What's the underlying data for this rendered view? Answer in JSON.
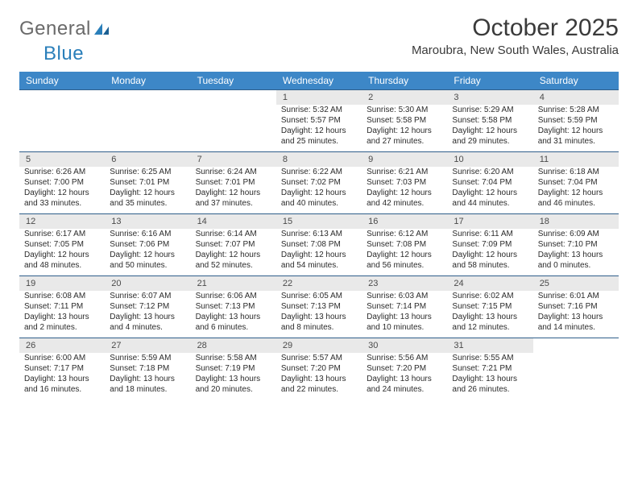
{
  "brand": {
    "text1": "General",
    "text2": "Blue"
  },
  "title": "October 2025",
  "location": "Maroubra, New South Wales, Australia",
  "colors": {
    "header_bg": "#3d87c7",
    "header_text": "#ffffff",
    "daynum_bg": "#e9e9e9",
    "rule": "#2f5e8a",
    "logo_gray": "#6a6a6a",
    "logo_blue": "#2a7fba"
  },
  "dow": [
    "Sunday",
    "Monday",
    "Tuesday",
    "Wednesday",
    "Thursday",
    "Friday",
    "Saturday"
  ],
  "weeks": [
    {
      "nums": [
        "",
        "",
        "",
        "1",
        "2",
        "3",
        "4"
      ],
      "cells": [
        null,
        null,
        null,
        {
          "sunrise": "Sunrise: 5:32 AM",
          "sunset": "Sunset: 5:57 PM",
          "day1": "Daylight: 12 hours",
          "day2": "and 25 minutes."
        },
        {
          "sunrise": "Sunrise: 5:30 AM",
          "sunset": "Sunset: 5:58 PM",
          "day1": "Daylight: 12 hours",
          "day2": "and 27 minutes."
        },
        {
          "sunrise": "Sunrise: 5:29 AM",
          "sunset": "Sunset: 5:58 PM",
          "day1": "Daylight: 12 hours",
          "day2": "and 29 minutes."
        },
        {
          "sunrise": "Sunrise: 5:28 AM",
          "sunset": "Sunset: 5:59 PM",
          "day1": "Daylight: 12 hours",
          "day2": "and 31 minutes."
        }
      ]
    },
    {
      "nums": [
        "5",
        "6",
        "7",
        "8",
        "9",
        "10",
        "11"
      ],
      "cells": [
        {
          "sunrise": "Sunrise: 6:26 AM",
          "sunset": "Sunset: 7:00 PM",
          "day1": "Daylight: 12 hours",
          "day2": "and 33 minutes."
        },
        {
          "sunrise": "Sunrise: 6:25 AM",
          "sunset": "Sunset: 7:01 PM",
          "day1": "Daylight: 12 hours",
          "day2": "and 35 minutes."
        },
        {
          "sunrise": "Sunrise: 6:24 AM",
          "sunset": "Sunset: 7:01 PM",
          "day1": "Daylight: 12 hours",
          "day2": "and 37 minutes."
        },
        {
          "sunrise": "Sunrise: 6:22 AM",
          "sunset": "Sunset: 7:02 PM",
          "day1": "Daylight: 12 hours",
          "day2": "and 40 minutes."
        },
        {
          "sunrise": "Sunrise: 6:21 AM",
          "sunset": "Sunset: 7:03 PM",
          "day1": "Daylight: 12 hours",
          "day2": "and 42 minutes."
        },
        {
          "sunrise": "Sunrise: 6:20 AM",
          "sunset": "Sunset: 7:04 PM",
          "day1": "Daylight: 12 hours",
          "day2": "and 44 minutes."
        },
        {
          "sunrise": "Sunrise: 6:18 AM",
          "sunset": "Sunset: 7:04 PM",
          "day1": "Daylight: 12 hours",
          "day2": "and 46 minutes."
        }
      ]
    },
    {
      "nums": [
        "12",
        "13",
        "14",
        "15",
        "16",
        "17",
        "18"
      ],
      "cells": [
        {
          "sunrise": "Sunrise: 6:17 AM",
          "sunset": "Sunset: 7:05 PM",
          "day1": "Daylight: 12 hours",
          "day2": "and 48 minutes."
        },
        {
          "sunrise": "Sunrise: 6:16 AM",
          "sunset": "Sunset: 7:06 PM",
          "day1": "Daylight: 12 hours",
          "day2": "and 50 minutes."
        },
        {
          "sunrise": "Sunrise: 6:14 AM",
          "sunset": "Sunset: 7:07 PM",
          "day1": "Daylight: 12 hours",
          "day2": "and 52 minutes."
        },
        {
          "sunrise": "Sunrise: 6:13 AM",
          "sunset": "Sunset: 7:08 PM",
          "day1": "Daylight: 12 hours",
          "day2": "and 54 minutes."
        },
        {
          "sunrise": "Sunrise: 6:12 AM",
          "sunset": "Sunset: 7:08 PM",
          "day1": "Daylight: 12 hours",
          "day2": "and 56 minutes."
        },
        {
          "sunrise": "Sunrise: 6:11 AM",
          "sunset": "Sunset: 7:09 PM",
          "day1": "Daylight: 12 hours",
          "day2": "and 58 minutes."
        },
        {
          "sunrise": "Sunrise: 6:09 AM",
          "sunset": "Sunset: 7:10 PM",
          "day1": "Daylight: 13 hours",
          "day2": "and 0 minutes."
        }
      ]
    },
    {
      "nums": [
        "19",
        "20",
        "21",
        "22",
        "23",
        "24",
        "25"
      ],
      "cells": [
        {
          "sunrise": "Sunrise: 6:08 AM",
          "sunset": "Sunset: 7:11 PM",
          "day1": "Daylight: 13 hours",
          "day2": "and 2 minutes."
        },
        {
          "sunrise": "Sunrise: 6:07 AM",
          "sunset": "Sunset: 7:12 PM",
          "day1": "Daylight: 13 hours",
          "day2": "and 4 minutes."
        },
        {
          "sunrise": "Sunrise: 6:06 AM",
          "sunset": "Sunset: 7:13 PM",
          "day1": "Daylight: 13 hours",
          "day2": "and 6 minutes."
        },
        {
          "sunrise": "Sunrise: 6:05 AM",
          "sunset": "Sunset: 7:13 PM",
          "day1": "Daylight: 13 hours",
          "day2": "and 8 minutes."
        },
        {
          "sunrise": "Sunrise: 6:03 AM",
          "sunset": "Sunset: 7:14 PM",
          "day1": "Daylight: 13 hours",
          "day2": "and 10 minutes."
        },
        {
          "sunrise": "Sunrise: 6:02 AM",
          "sunset": "Sunset: 7:15 PM",
          "day1": "Daylight: 13 hours",
          "day2": "and 12 minutes."
        },
        {
          "sunrise": "Sunrise: 6:01 AM",
          "sunset": "Sunset: 7:16 PM",
          "day1": "Daylight: 13 hours",
          "day2": "and 14 minutes."
        }
      ]
    },
    {
      "nums": [
        "26",
        "27",
        "28",
        "29",
        "30",
        "31",
        ""
      ],
      "cells": [
        {
          "sunrise": "Sunrise: 6:00 AM",
          "sunset": "Sunset: 7:17 PM",
          "day1": "Daylight: 13 hours",
          "day2": "and 16 minutes."
        },
        {
          "sunrise": "Sunrise: 5:59 AM",
          "sunset": "Sunset: 7:18 PM",
          "day1": "Daylight: 13 hours",
          "day2": "and 18 minutes."
        },
        {
          "sunrise": "Sunrise: 5:58 AM",
          "sunset": "Sunset: 7:19 PM",
          "day1": "Daylight: 13 hours",
          "day2": "and 20 minutes."
        },
        {
          "sunrise": "Sunrise: 5:57 AM",
          "sunset": "Sunset: 7:20 PM",
          "day1": "Daylight: 13 hours",
          "day2": "and 22 minutes."
        },
        {
          "sunrise": "Sunrise: 5:56 AM",
          "sunset": "Sunset: 7:20 PM",
          "day1": "Daylight: 13 hours",
          "day2": "and 24 minutes."
        },
        {
          "sunrise": "Sunrise: 5:55 AM",
          "sunset": "Sunset: 7:21 PM",
          "day1": "Daylight: 13 hours",
          "day2": "and 26 minutes."
        },
        null
      ]
    }
  ]
}
